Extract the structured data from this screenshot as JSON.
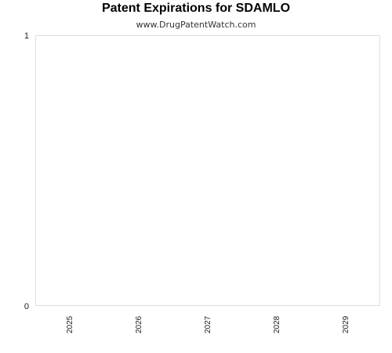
{
  "chart_data": {
    "type": "bar",
    "title": "Patent Expirations for SDAMLO",
    "subtitle": "www.DrugPatentWatch.com",
    "categories": [
      "2025",
      "2026",
      "2027",
      "2028",
      "2029"
    ],
    "values": [
      0,
      0,
      0,
      0,
      0
    ],
    "xlabel": "",
    "ylabel": "",
    "ylim": [
      0,
      1
    ],
    "yticks": [
      "0",
      "1"
    ],
    "grid": false,
    "legend": "none",
    "colors": {
      "frame": "#dddddd",
      "bar": "#4f81bd"
    }
  }
}
